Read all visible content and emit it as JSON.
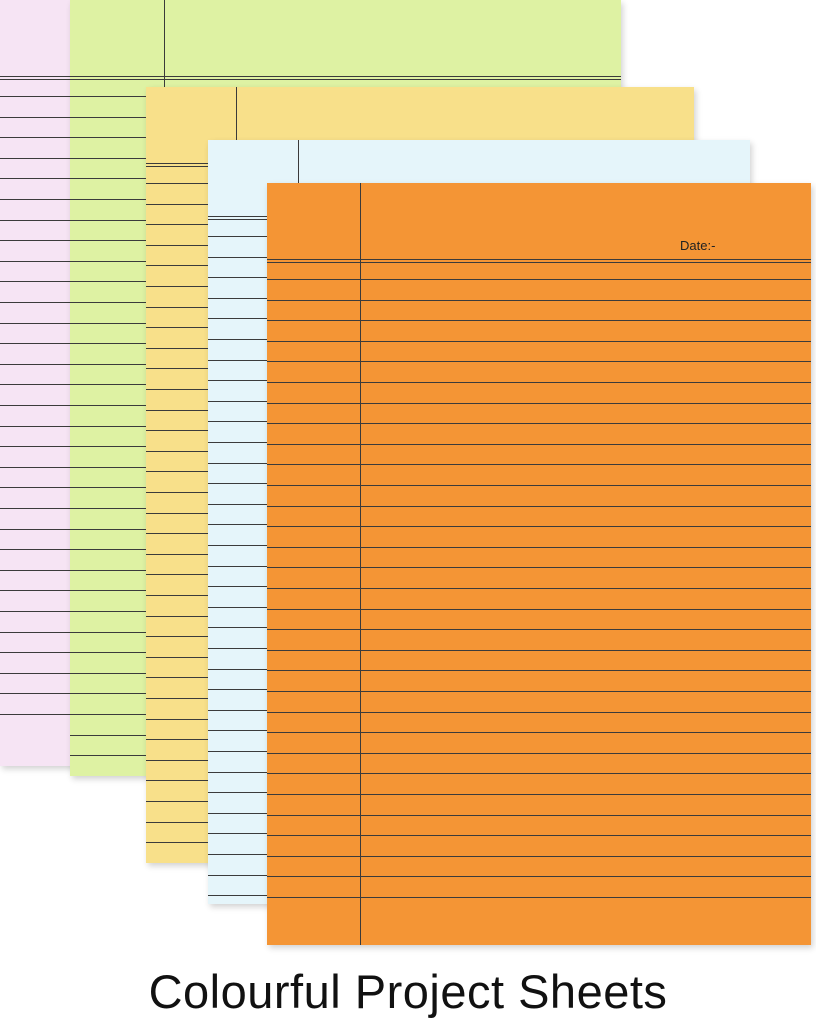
{
  "sheets": [
    {
      "id": "sheet-pink",
      "color": "#f6e4f4"
    },
    {
      "id": "sheet-green",
      "color": "#def2a3"
    },
    {
      "id": "sheet-yellow",
      "color": "#f8e08a"
    },
    {
      "id": "sheet-blue",
      "color": "#e5f5fa"
    },
    {
      "id": "sheet-orange",
      "color": "#f49535"
    }
  ],
  "orange_sheet": {
    "date_label": "Date:-"
  },
  "caption": "Colourful Project Sheets"
}
